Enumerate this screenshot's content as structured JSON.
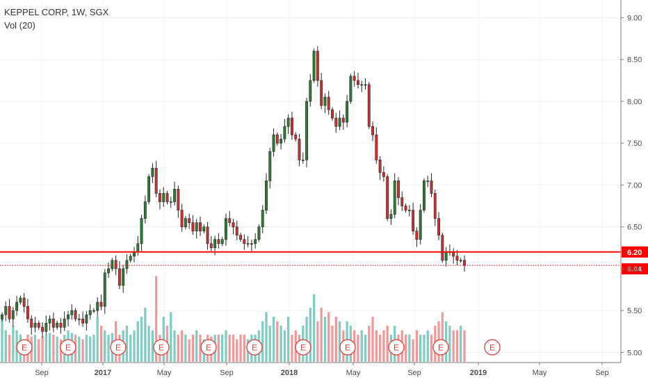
{
  "header": {
    "title": "KEPPEL CORP, 1W, SGX",
    "indicator": "Vol (20)"
  },
  "colors": {
    "up": "#2e7d32",
    "down": "#d32f2f",
    "vol_up": "#80cbc4",
    "vol_down": "#ef9a9a",
    "line": "#ff0000",
    "earnings": "#e53935"
  },
  "earnings_label": "E",
  "chart_data": {
    "type": "candlestick",
    "title": "KEPPEL CORP, 1W, SGX",
    "y_ticks": [
      "5.00",
      "5.50",
      "6.00",
      "6.50",
      "7.00",
      "7.50",
      "8.00",
      "8.50",
      "9.00"
    ],
    "ylim": [
      4.97,
      9.07
    ],
    "x_ticks": [
      "Sep",
      "2017",
      "May",
      "Sep",
      "2018",
      "May",
      "Sep",
      "2019",
      "May",
      "Sep"
    ],
    "horizontal_lines": [
      {
        "value": 6.2,
        "label": "6.20",
        "style": "solid"
      },
      {
        "value": 6.04,
        "label": "6.04",
        "style": "dotted"
      }
    ],
    "earnings_markers": 11,
    "ohlc_close": [
      5.45,
      5.55,
      5.4,
      5.5,
      5.6,
      5.65,
      5.55,
      5.4,
      5.3,
      5.35,
      5.3,
      5.25,
      5.35,
      5.4,
      5.3,
      5.35,
      5.3,
      5.4,
      5.45,
      5.5,
      5.4,
      5.4,
      5.35,
      5.45,
      5.5,
      5.5,
      5.6,
      5.55,
      5.95,
      6.0,
      6.1,
      6.0,
      5.8,
      6.0,
      6.1,
      6.15,
      6.2,
      6.3,
      6.6,
      6.8,
      7.1,
      7.2,
      6.9,
      6.8,
      6.9,
      6.8,
      6.8,
      6.95,
      6.7,
      6.5,
      6.6,
      6.55,
      6.45,
      6.55,
      6.45,
      6.5,
      6.3,
      6.25,
      6.35,
      6.3,
      6.35,
      6.6,
      6.55,
      6.5,
      6.4,
      6.35,
      6.3,
      6.3,
      6.3,
      6.35,
      6.5,
      6.7,
      7.05,
      7.4,
      7.6,
      7.5,
      7.55,
      7.7,
      7.8,
      7.6,
      7.55,
      7.3,
      7.3,
      8.0,
      8.25,
      8.6,
      8.25,
      7.95,
      8.05,
      7.9,
      7.8,
      7.7,
      7.8,
      7.75,
      8.0,
      8.3,
      8.25,
      8.2,
      8.2,
      8.2,
      7.7,
      7.6,
      7.3,
      7.15,
      7.1,
      6.6,
      6.65,
      7.05,
      6.85,
      6.75,
      6.7,
      6.7,
      6.45,
      6.35,
      6.7,
      7.05,
      7.05,
      6.9,
      6.6,
      6.4,
      6.1,
      6.2,
      6.2,
      6.15,
      6.1,
      6.1,
      6.04
    ]
  },
  "volume": [
    0.5,
    0.35,
    0.3,
    0.4,
    0.35,
    0.3,
    0.25,
    0.3,
    0.28,
    0.3,
    0.25,
    0.28,
    0.3,
    0.32,
    0.3,
    0.28,
    0.25,
    0.3,
    0.35,
    0.32,
    0.3,
    0.28,
    0.25,
    0.3,
    0.28,
    0.3,
    0.5,
    0.4,
    0.35,
    0.3,
    0.32,
    0.45,
    0.3,
    0.35,
    0.4,
    0.3,
    0.35,
    0.45,
    0.5,
    0.6,
    0.4,
    0.35,
    0.95,
    0.3,
    0.5,
    0.4,
    0.55,
    0.35,
    0.3,
    0.35,
    0.3,
    0.25,
    0.3,
    0.35,
    0.3,
    0.25,
    0.3,
    0.28,
    0.3,
    0.3,
    0.3,
    0.35,
    0.3,
    0.3,
    0.25,
    0.3,
    0.3,
    0.25,
    0.3,
    0.3,
    0.35,
    0.45,
    0.55,
    0.4,
    0.5,
    0.45,
    0.4,
    0.35,
    0.5,
    0.3,
    0.35,
    0.3,
    0.4,
    0.5,
    0.6,
    0.75,
    0.45,
    0.6,
    0.5,
    0.55,
    0.4,
    0.5,
    0.45,
    0.35,
    0.45,
    0.4,
    0.35,
    0.3,
    0.35,
    0.3,
    0.4,
    0.5,
    0.35,
    0.3,
    0.35,
    0.4,
    0.3,
    0.4,
    0.3,
    0.35,
    0.3,
    0.3,
    0.25,
    0.35,
    0.3,
    0.3,
    0.35,
    0.3,
    0.4,
    0.45,
    0.55,
    0.45,
    0.4,
    0.35,
    0.35,
    0.4,
    0.35
  ]
}
